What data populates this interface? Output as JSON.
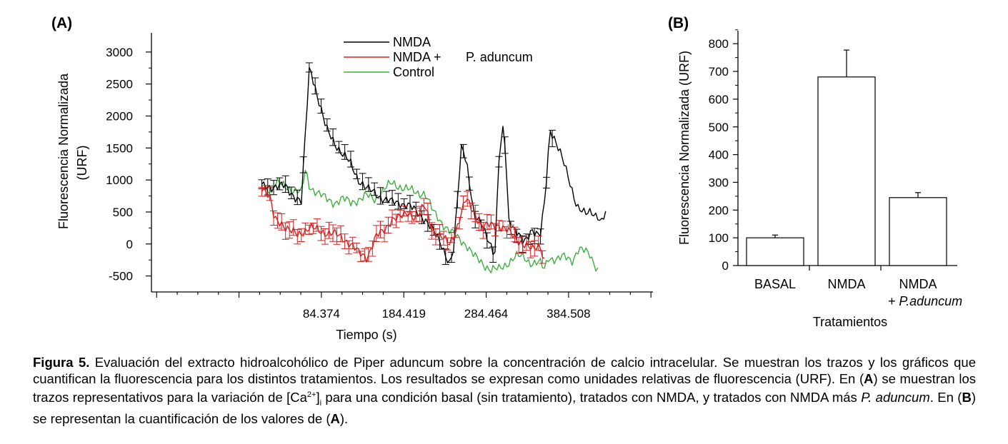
{
  "chart_data": [
    {
      "type": "line",
      "panel_label": "(A)",
      "xlabel": "Tiempo (s)",
      "ylabel": "Fluorescencia Normalizada (URF)",
      "ylabel_line1": "Fluorescencia Normalizada",
      "ylabel_line2": "(URF)",
      "xlim": [
        -122,
        487
      ],
      "ylim": [
        -750,
        3300
      ],
      "x_ticks": [
        84.374,
        184.419,
        284.464,
        384.508
      ],
      "x_tick_labels": [
        "84.374",
        "184.419",
        "284.464",
        "384.508"
      ],
      "y_ticks": [
        -500,
        0,
        500,
        1000,
        1500,
        2000,
        2500,
        3000
      ],
      "y_tick_labels": [
        "-500",
        "0",
        "500",
        "1000",
        "1500",
        "2000",
        "2500",
        "3000"
      ],
      "legend_position": "top",
      "legend": [
        {
          "label": "NMDA",
          "extra": "",
          "color": "#000000"
        },
        {
          "label": "NMDA +",
          "extra": "P. aduncum",
          "color": "#d42020"
        },
        {
          "label": "Control",
          "extra": "",
          "color": "#3fae3f"
        }
      ],
      "series": [
        {
          "name": "NMDA",
          "color": "#000000",
          "error_bars": true,
          "error_interval": 3,
          "x": [
            12,
            40,
            60,
            70,
            80,
            90,
            100,
            110,
            120,
            130,
            140,
            150,
            160,
            170,
            180,
            190,
            200,
            210,
            220,
            230,
            240,
            245,
            255,
            262,
            270,
            280,
            290,
            295,
            300,
            306,
            312,
            320,
            330,
            340,
            350,
            356,
            362,
            368,
            375,
            385,
            395,
            405,
            412,
            420,
            425,
            430
          ],
          "y": [
            900,
            900,
            650,
            2800,
            2300,
            1800,
            1600,
            1400,
            1250,
            1000,
            850,
            800,
            700,
            650,
            650,
            600,
            500,
            400,
            200,
            0,
            -300,
            -100,
            1600,
            1200,
            400,
            300,
            0,
            -200,
            1300,
            1900,
            400,
            200,
            0,
            250,
            100,
            700,
            1800,
            1650,
            1400,
            1000,
            600,
            450,
            500,
            450,
            350,
            500
          ]
        },
        {
          "name": "NMDA + P. aduncum",
          "color": "#d42020",
          "error_bars": true,
          "error_interval": 2,
          "x": [
            12,
            22,
            27,
            35,
            45,
            55,
            70,
            85,
            100,
            110,
            120,
            130,
            140,
            150,
            160,
            170,
            180,
            190,
            200,
            210,
            220,
            230,
            240,
            250,
            260,
            270,
            280,
            290,
            300,
            310,
            320,
            330,
            340,
            350,
            356
          ],
          "y": [
            900,
            700,
            400,
            350,
            200,
            150,
            250,
            200,
            150,
            100,
            0,
            -150,
            -200,
            100,
            200,
            400,
            400,
            500,
            400,
            600,
            200,
            100,
            0,
            300,
            700,
            500,
            250,
            300,
            300,
            200,
            100,
            0,
            -100,
            0,
            -300
          ]
        },
        {
          "name": "Control",
          "color": "#3fae3f",
          "error_bars": false,
          "x": [
            12,
            20,
            30,
            40,
            50,
            60,
            65,
            70,
            80,
            90,
            100,
            110,
            120,
            130,
            140,
            150,
            160,
            170,
            180,
            190,
            200,
            210,
            220,
            230,
            240,
            250,
            260,
            270,
            280,
            290,
            300,
            310,
            320,
            330,
            340,
            350,
            355,
            360,
            370,
            380,
            390,
            395,
            400,
            410,
            420
          ],
          "y": [
            900,
            850,
            950,
            900,
            850,
            800,
            1150,
            900,
            800,
            700,
            650,
            700,
            650,
            700,
            750,
            700,
            850,
            950,
            900,
            850,
            800,
            800,
            500,
            350,
            200,
            100,
            0,
            -200,
            -300,
            -400,
            -400,
            -300,
            -200,
            -200,
            -300,
            -300,
            -400,
            -200,
            -250,
            -200,
            -250,
            -100,
            -100,
            -150,
            -400
          ]
        }
      ]
    },
    {
      "type": "bar",
      "panel_label": "(B)",
      "xlabel": "Tratamientos",
      "ylabel": "Fluorescencia Normalizada (URF)",
      "ylim": [
        0,
        850
      ],
      "y_ticks": [
        0,
        100,
        200,
        300,
        400,
        500,
        600,
        700,
        800
      ],
      "y_tick_labels": [
        "0",
        "100",
        "200",
        "300",
        "400",
        "500",
        "600",
        "700",
        "800"
      ],
      "categories": [
        "BASAL",
        "NMDA",
        "NMDA + P.aduncum"
      ],
      "category_lines": [
        [
          "BASAL"
        ],
        [
          "NMDA"
        ],
        [
          "NMDA",
          "+ P.aduncum"
        ]
      ],
      "values": [
        100,
        680,
        245
      ],
      "errors": [
        10,
        97,
        18
      ],
      "bar_color": "#ffffff",
      "edge_color": "#000000"
    }
  ],
  "caption": {
    "fig_label": "Figura 5.",
    "s1": " Evaluación del extracto hidroalcohólico de Piper aduncum sobre la concentración de calcio intracelular. Se muestran los trazos y los gráficos que cuantifican la fluorescencia para los distintos tratamientos. Los resultados se expresan como unidades relativas de fluorescencia (URF). En (",
    "b1": "A",
    "s2": ") se muestran los trazos representativos para la variación de [Ca",
    "sup": "2+",
    "s3": "]",
    "sub": "i",
    "s4": " para una condición basal (sin tratamiento), tratados con NMDA, y tratados con NMDA más ",
    "it": "P. aduncum",
    "s5": ". En (",
    "b2": "B",
    "s6": ") se representan la cuantificación de los valores de (",
    "b3": "A",
    "s7": ")."
  }
}
